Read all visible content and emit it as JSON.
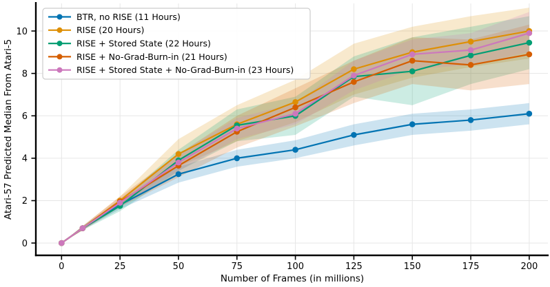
{
  "figure": {
    "type": "matplotlib-line-chart",
    "background": "#ffffff",
    "grid_color": "#e6e6e6",
    "spine_color": "#000000",
    "legend_border_color": "#cccccc",
    "legend_background": "#ffffff"
  },
  "chart_data": {
    "type": "line",
    "title": "",
    "xlabel": "Number of Frames (in millions)",
    "ylabel": "Atari-57 Predicted Median From Atari-5",
    "x": [
      0,
      9,
      25,
      50,
      75,
      100,
      125,
      150,
      175,
      200
    ],
    "x_ticks": [
      0,
      25,
      50,
      75,
      100,
      125,
      150,
      175,
      200
    ],
    "y_ticks": [
      0,
      2,
      4,
      6,
      8,
      10
    ],
    "xlim": [
      -11,
      208
    ],
    "ylim": [
      -0.58,
      11.3
    ],
    "grid": true,
    "legend_position": "upper left",
    "marker": "circle",
    "series": [
      {
        "name": "BTR, no RISE (11 Hours)",
        "color": "#0173b2",
        "values": [
          0,
          0.7,
          1.8,
          3.25,
          4.0,
          4.4,
          5.1,
          5.6,
          5.8,
          6.1
        ],
        "band_low": [
          0,
          0.62,
          1.6,
          2.85,
          3.6,
          4.0,
          4.6,
          5.1,
          5.3,
          5.6
        ],
        "band_high": [
          0,
          0.78,
          2.0,
          3.6,
          4.4,
          4.85,
          5.6,
          6.1,
          6.3,
          6.6
        ]
      },
      {
        "name": "RISE (20 Hours)",
        "color": "#de8f05",
        "values": [
          0,
          0.7,
          2.0,
          4.2,
          5.6,
          6.65,
          8.2,
          9.0,
          9.5,
          10.0
        ],
        "band_low": [
          0,
          0.6,
          1.8,
          3.6,
          4.8,
          5.7,
          7.0,
          7.8,
          8.3,
          8.7
        ],
        "band_high": [
          0,
          0.8,
          2.2,
          4.9,
          6.5,
          7.7,
          9.4,
          10.2,
          10.7,
          11.1
        ]
      },
      {
        "name": "RISE + Stored State (22 Hours)",
        "color": "#029e73",
        "values": [
          0,
          0.7,
          1.75,
          3.9,
          5.55,
          6.0,
          7.85,
          8.1,
          8.85,
          9.45
        ],
        "band_low": [
          0,
          0.6,
          1.5,
          3.4,
          4.8,
          5.1,
          6.9,
          6.5,
          7.5,
          8.2
        ],
        "band_high": [
          0,
          0.8,
          2.0,
          4.4,
          6.3,
          6.9,
          8.8,
          9.7,
          10.2,
          10.7
        ]
      },
      {
        "name": "RISE + No-Grad-Burn-in (21 Hours)",
        "color": "#d55e00",
        "values": [
          0,
          0.7,
          1.95,
          3.65,
          5.25,
          6.4,
          7.6,
          8.6,
          8.4,
          8.9
        ],
        "band_low": [
          0,
          0.6,
          1.7,
          3.1,
          4.5,
          5.5,
          6.6,
          7.5,
          7.2,
          7.5
        ],
        "band_high": [
          0,
          0.8,
          2.2,
          4.2,
          6.0,
          7.3,
          8.6,
          9.7,
          9.6,
          10.3
        ]
      },
      {
        "name": "RISE + Stored State + No-Grad-Burn-in (23 Hours)",
        "color": "#cc78bc",
        "values": [
          0,
          0.7,
          1.9,
          3.8,
          5.4,
          6.1,
          7.9,
          8.9,
          9.1,
          9.9
        ],
        "band_low": [
          0,
          0.6,
          1.7,
          3.4,
          4.9,
          5.6,
          7.2,
          8.2,
          8.4,
          9.0
        ],
        "band_high": [
          0,
          0.8,
          2.1,
          4.2,
          5.9,
          6.6,
          8.6,
          9.6,
          9.9,
          10.9
        ]
      }
    ]
  }
}
